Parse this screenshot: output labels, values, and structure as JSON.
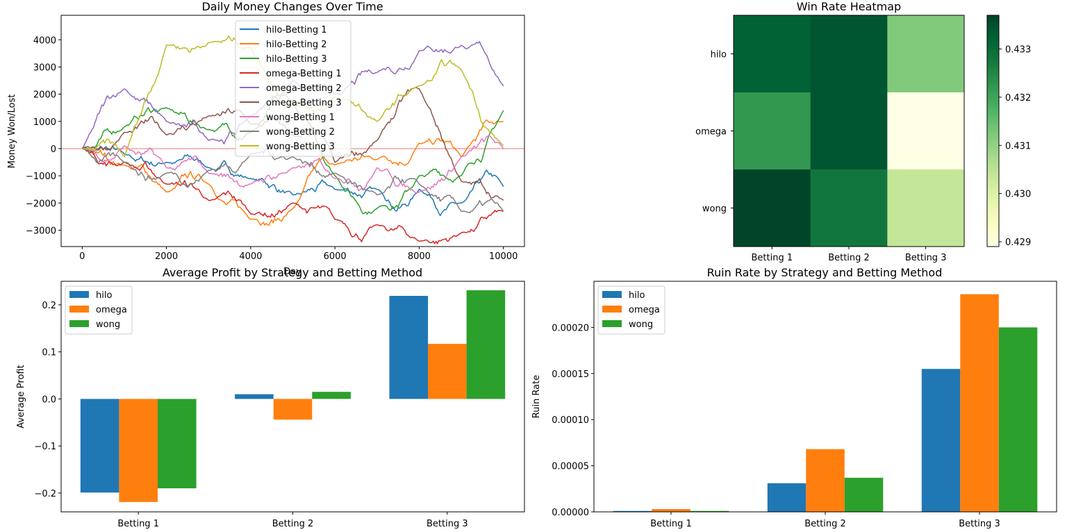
{
  "chart_data": [
    {
      "type": "line",
      "title": "Daily Money Changes Over Time",
      "xlabel": "Day",
      "ylabel": "Money Won/Lost",
      "xlim": [
        -500,
        10500
      ],
      "ylim": [
        -3600,
        4900
      ],
      "xticks": [
        0,
        2000,
        4000,
        6000,
        8000,
        10000
      ],
      "yticks": [
        -3000,
        -2000,
        -1000,
        0,
        1000,
        2000,
        3000,
        4000
      ],
      "hline": {
        "y": 0,
        "color": "#f4a3a3"
      },
      "legend_position": "top-center",
      "series": [
        {
          "name": "hilo-Betting 1",
          "color": "#1f77b4",
          "x": [
            0,
            1000,
            2000,
            3000,
            4000,
            5000,
            6000,
            7000,
            8000,
            9000,
            10000
          ],
          "y": [
            0,
            -200,
            -500,
            -700,
            -1100,
            -1700,
            -1500,
            -1500,
            -1500,
            -2000,
            -1400
          ]
        },
        {
          "name": "hilo-Betting 2",
          "color": "#ff7f0e",
          "x": [
            0,
            1000,
            2000,
            3000,
            4000,
            5000,
            6000,
            7000,
            8000,
            9000,
            10000
          ],
          "y": [
            0,
            -600,
            -1600,
            -1300,
            -2600,
            -2200,
            -600,
            -400,
            200,
            -300,
            1000
          ]
        },
        {
          "name": "hilo-Betting 3",
          "color": "#2ca02c",
          "x": [
            0,
            1000,
            2000,
            3000,
            4000,
            5000,
            6000,
            7000,
            8000,
            9000,
            10000
          ],
          "y": [
            0,
            800,
            1500,
            700,
            600,
            1700,
            -1000,
            -2200,
            -1000,
            -1000,
            1400
          ]
        },
        {
          "name": "omega-Betting 1",
          "color": "#d62728",
          "x": [
            0,
            1000,
            2000,
            3000,
            4000,
            5000,
            6000,
            7000,
            8000,
            9000,
            10000
          ],
          "y": [
            0,
            -500,
            -1300,
            -1900,
            -2400,
            -2000,
            -2600,
            -2800,
            -3400,
            -3100,
            -2300
          ]
        },
        {
          "name": "omega-Betting 2",
          "color": "#9467bd",
          "x": [
            0,
            1000,
            2000,
            3000,
            4000,
            5000,
            6000,
            7000,
            8000,
            9000,
            10000
          ],
          "y": [
            0,
            2200,
            1000,
            300,
            1200,
            2500,
            2000,
            2800,
            3600,
            3800,
            2300
          ]
        },
        {
          "name": "omega-Betting 3",
          "color": "#8c564b",
          "x": [
            0,
            1000,
            2000,
            3000,
            4000,
            5000,
            6000,
            7000,
            8000,
            9000,
            10000
          ],
          "y": [
            0,
            600,
            500,
            1200,
            900,
            500,
            -500,
            300,
            2200,
            -1200,
            -1900
          ]
        },
        {
          "name": "wong-Betting 1",
          "color": "#e377c2",
          "x": [
            0,
            1000,
            2000,
            3000,
            4000,
            5000,
            6000,
            7000,
            8000,
            9000,
            10000
          ],
          "y": [
            0,
            100,
            -700,
            -900,
            -1300,
            -700,
            -1100,
            -700,
            -1600,
            -300,
            0
          ]
        },
        {
          "name": "wong-Betting 2",
          "color": "#7f7f7f",
          "x": [
            0,
            1000,
            2000,
            3000,
            4000,
            5000,
            6000,
            7000,
            8000,
            9000,
            10000
          ],
          "y": [
            0,
            -500,
            -900,
            -800,
            -200,
            -300,
            -900,
            -1700,
            -1300,
            -2300,
            -2300
          ]
        },
        {
          "name": "wong-Betting 3",
          "color": "#bcbd22",
          "x": [
            0,
            1000,
            2000,
            3000,
            4000,
            5000,
            6000,
            7000,
            8000,
            9000,
            10000
          ],
          "y": [
            0,
            -300,
            3800,
            3900,
            3700,
            1600,
            1900,
            1000,
            2300,
            2900,
            100
          ]
        }
      ]
    },
    {
      "type": "heatmap",
      "title": "Win Rate Heatmap",
      "rows": [
        "hilo",
        "omega",
        "wong"
      ],
      "columns": [
        "Betting 1",
        "Betting 2",
        "Betting 3"
      ],
      "values": [
        [
          0.4332,
          0.4334,
          0.4312
        ],
        [
          0.4322,
          0.4334,
          0.4289
        ],
        [
          0.4337,
          0.4328,
          0.4304
        ]
      ],
      "colorbar": {
        "min": 0.4289,
        "max": 0.4337,
        "ticks": [
          0.429,
          0.43,
          0.431,
          0.432,
          0.433
        ],
        "tick_labels": [
          "0.429",
          "0.430",
          "0.431",
          "0.432",
          "0.433"
        ],
        "colormap": "Greens"
      }
    },
    {
      "type": "bar",
      "title": "Average Profit by Strategy and Betting Method",
      "xlabel": "",
      "ylabel": "Average Profit",
      "categories": [
        "Betting 1",
        "Betting 2",
        "Betting 3"
      ],
      "ylim": [
        -0.24,
        0.25
      ],
      "yticks": [
        -0.2,
        -0.1,
        0.0,
        0.1,
        0.2
      ],
      "ytick_labels": [
        "−0.2",
        "−0.1",
        "0.0",
        "0.1",
        "0.2"
      ],
      "legend_position": "top-left",
      "series": [
        {
          "name": "hilo",
          "color": "#1f77b4",
          "values": [
            -0.199,
            0.01,
            0.219
          ]
        },
        {
          "name": "omega",
          "color": "#ff7f0e",
          "values": [
            -0.219,
            -0.044,
            0.117
          ]
        },
        {
          "name": "wong",
          "color": "#2ca02c",
          "values": [
            -0.19,
            0.015,
            0.231
          ]
        }
      ]
    },
    {
      "type": "bar",
      "title": "Ruin Rate by Strategy and Betting Method",
      "xlabel": "",
      "ylabel": "Ruin Rate",
      "categories": [
        "Betting 1",
        "Betting 2",
        "Betting 3"
      ],
      "ylim": [
        0,
        0.00025
      ],
      "yticks": [
        0,
        5e-05,
        0.0001,
        0.00015,
        0.0002
      ],
      "ytick_labels": [
        "0.00000",
        "0.00005",
        "0.00010",
        "0.00015",
        "0.00020"
      ],
      "legend_position": "top-left",
      "series": [
        {
          "name": "hilo",
          "color": "#1f77b4",
          "values": [
            1e-06,
            3.1e-05,
            0.000155
          ]
        },
        {
          "name": "omega",
          "color": "#ff7f0e",
          "values": [
            3e-06,
            6.8e-05,
            0.000236
          ]
        },
        {
          "name": "wong",
          "color": "#2ca02c",
          "values": [
            1e-06,
            3.7e-05,
            0.0002
          ]
        }
      ]
    }
  ]
}
